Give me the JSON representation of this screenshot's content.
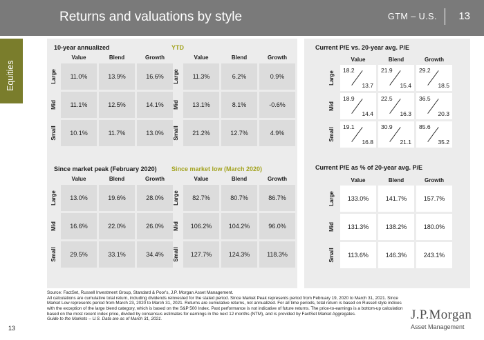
{
  "header": {
    "title": "Returns and valuations by style",
    "region": "GTM – U.S.",
    "page_number": "13"
  },
  "sidebar_tab": "Equities",
  "column_labels": [
    "Value",
    "Blend",
    "Growth"
  ],
  "row_labels": [
    "Large",
    "Mid",
    "Small"
  ],
  "returns_tables": [
    {
      "title": "10-year annualized",
      "olive": false,
      "rows": [
        [
          "11.0%",
          "13.9%",
          "16.6%"
        ],
        [
          "11.1%",
          "12.5%",
          "14.1%"
        ],
        [
          "10.1%",
          "11.7%",
          "13.0%"
        ]
      ]
    },
    {
      "title": "YTD",
      "olive": true,
      "rows": [
        [
          "11.3%",
          "6.2%",
          "0.9%"
        ],
        [
          "13.1%",
          "8.1%",
          "-0.6%"
        ],
        [
          "21.2%",
          "12.7%",
          "4.9%"
        ]
      ]
    },
    {
      "title": "Since market peak (February 2020)",
      "olive": false,
      "rows": [
        [
          "13.0%",
          "19.6%",
          "28.0%"
        ],
        [
          "16.6%",
          "22.0%",
          "26.0%"
        ],
        [
          "29.5%",
          "33.1%",
          "34.4%"
        ]
      ]
    },
    {
      "title": "Since market low (March 2020)",
      "olive": true,
      "rows": [
        [
          "82.7%",
          "80.7%",
          "86.7%"
        ],
        [
          "106.2%",
          "104.2%",
          "96.0%"
        ],
        [
          "127.7%",
          "124.3%",
          "118.3%"
        ]
      ]
    }
  ],
  "pe_vs_avg": {
    "title": "Current P/E vs. 20-year avg. P/E",
    "rows": [
      [
        {
          "current": "18.2",
          "avg": "13.7"
        },
        {
          "current": "21.9",
          "avg": "15.4"
        },
        {
          "current": "29.2",
          "avg": "18.5"
        }
      ],
      [
        {
          "current": "18.9",
          "avg": "14.4"
        },
        {
          "current": "22.5",
          "avg": "16.3"
        },
        {
          "current": "36.5",
          "avg": "20.3"
        }
      ],
      [
        {
          "current": "19.1",
          "avg": "16.8"
        },
        {
          "current": "30.9",
          "avg": "21.1"
        },
        {
          "current": "85.6",
          "avg": "35.2"
        }
      ]
    ]
  },
  "pe_pct": {
    "title": "Current P/E as % of 20-year avg. P/E",
    "rows": [
      [
        "133.0%",
        "141.7%",
        "157.7%"
      ],
      [
        "131.3%",
        "138.2%",
        "180.0%"
      ],
      [
        "113.6%",
        "146.3%",
        "243.1%"
      ]
    ]
  },
  "footnotes": {
    "source": "Source: FactSet, Russell Investment Group, Standard & Poor's, J.P. Morgan Asset Management.",
    "body": "All calculations are cumulative total return, including dividends reinvested for the stated period. Since Market Peak represents period from February 19, 2020 to March 31, 2021. Since Market Low represents period from March 23, 2020 to March 31, 2021. Returns are cumulative returns, not annualized. For all time periods, total return is based on Russell style indices with the exception of the large blend category, which is based on the S&P 500 Index. Past performance is not indicative of future returns. The price-to-earnings is a bottom-up calculation based on the most recent index price, divided by consensus estimates for earnings in the next 12 months (NTM), and is provided by FactSet Market Aggregates.",
    "guide": "Guide to the Markets – U.S. Data are as of March 31, 2021."
  },
  "footer_page_number": "13",
  "logo": {
    "name": "J.P.Morgan",
    "sub": "Asset Management"
  }
}
